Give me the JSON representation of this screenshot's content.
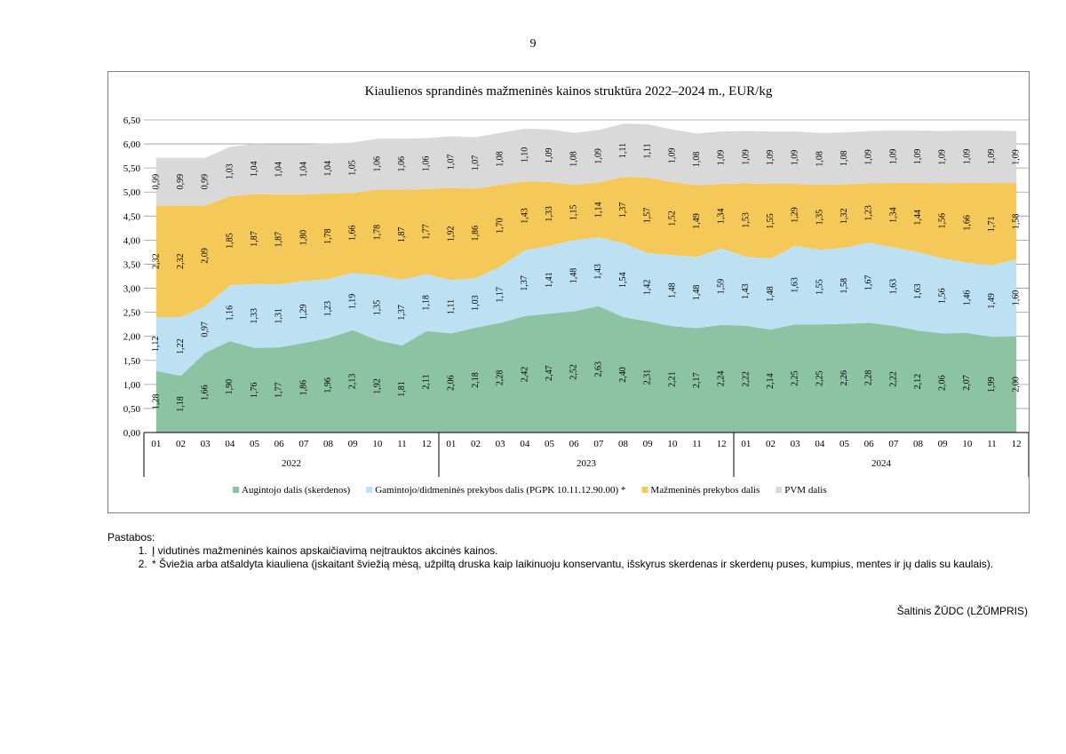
{
  "page_number": "9",
  "chart_data": {
    "type": "area",
    "stacked": true,
    "title": "Kiaulienos sprandinės mažmeninės kainos struktūra 2022–2024 m., EUR/kg",
    "xlabel": "",
    "ylabel": "",
    "ylim": [
      0,
      6.5
    ],
    "y_ticks": [
      "0,00",
      "0,50",
      "1,00",
      "1,50",
      "2,00",
      "2,50",
      "3,00",
      "3,50",
      "4,00",
      "4,50",
      "5,00",
      "5,50",
      "6,00",
      "6,50"
    ],
    "grid": true,
    "legend_position": "bottom",
    "months": [
      "01",
      "02",
      "03",
      "04",
      "05",
      "06",
      "07",
      "08",
      "09",
      "10",
      "11",
      "12",
      "01",
      "02",
      "03",
      "04",
      "05",
      "06",
      "07",
      "08",
      "09",
      "10",
      "11",
      "12",
      "01",
      "02",
      "03",
      "04",
      "05",
      "06",
      "07",
      "08",
      "09",
      "10",
      "11",
      "12"
    ],
    "years": [
      "2022",
      "2023",
      "2024"
    ],
    "series": [
      {
        "name": "Augintojo dalis (skerdenos)",
        "color": "#8cc4a3",
        "values": [
          1.28,
          1.18,
          1.66,
          1.9,
          1.76,
          1.77,
          1.86,
          1.96,
          2.13,
          1.92,
          1.81,
          2.11,
          2.06,
          2.18,
          2.28,
          2.42,
          2.47,
          2.52,
          2.63,
          2.4,
          2.31,
          2.21,
          2.17,
          2.24,
          2.22,
          2.14,
          2.25,
          2.25,
          2.26,
          2.28,
          2.22,
          2.12,
          2.06,
          2.07,
          1.99,
          2.0
        ],
        "labels": [
          "1,28",
          "1,18",
          "1,66",
          "1,90",
          "1,76",
          "1,77",
          "1,86",
          "1,96",
          "2,13",
          "1,92",
          "1,81",
          "2,11",
          "2,06",
          "2,18",
          "2,28",
          "2,42",
          "2,47",
          "2,52",
          "2,63",
          "2,40",
          "2,31",
          "2,21",
          "2,17",
          "2,24",
          "2,22",
          "2,14",
          "2,25",
          "2,25",
          "2,26",
          "2,28",
          "2,22",
          "2,12",
          "2,06",
          "2,07",
          "1,99",
          "2,00"
        ]
      },
      {
        "name": "Gamintojo/didmeninės prekybos dalis (PGPK 10.11.12.90.00) *",
        "color": "#bde0f2",
        "values": [
          1.12,
          1.22,
          0.97,
          1.16,
          1.33,
          1.31,
          1.29,
          1.23,
          1.19,
          1.35,
          1.37,
          1.18,
          1.11,
          1.03,
          1.17,
          1.37,
          1.41,
          1.48,
          1.43,
          1.54,
          1.42,
          1.48,
          1.48,
          1.59,
          1.43,
          1.48,
          1.63,
          1.55,
          1.58,
          1.67,
          1.63,
          1.63,
          1.56,
          1.46,
          1.49,
          1.6
        ],
        "labels": [
          "1,12",
          "1,22",
          "0,97",
          "1,16",
          "1,33",
          "1,31",
          "1,29",
          "1,23",
          "1,19",
          "1,35",
          "1,37",
          "1,18",
          "1,11",
          "1,03",
          "1,17",
          "1,37",
          "1,41",
          "1,48",
          "1,43",
          "1,54",
          "1,42",
          "1,48",
          "1,48",
          "1,59",
          "1,43",
          "1,48",
          "1,63",
          "1,55",
          "1,58",
          "1,67",
          "1,63",
          "1,63",
          "1,56",
          "1,46",
          "1,49",
          "1,60"
        ]
      },
      {
        "name": "Mažmeninės prekybos dalis",
        "color": "#f5c85a",
        "values": [
          2.32,
          2.32,
          2.09,
          1.85,
          1.87,
          1.87,
          1.8,
          1.78,
          1.66,
          1.78,
          1.87,
          1.77,
          1.92,
          1.86,
          1.7,
          1.43,
          1.33,
          1.15,
          1.14,
          1.37,
          1.57,
          1.52,
          1.49,
          1.34,
          1.53,
          1.55,
          1.29,
          1.35,
          1.32,
          1.23,
          1.34,
          1.44,
          1.56,
          1.66,
          1.71,
          1.58
        ],
        "labels": [
          "2,32",
          "2,32",
          "2,09",
          "1,85",
          "1,87",
          "1,87",
          "1,80",
          "1,78",
          "1,66",
          "1,78",
          "1,87",
          "1,77",
          "1,92",
          "1,86",
          "1,70",
          "1,43",
          "1,33",
          "1,15",
          "1,14",
          "1,37",
          "1,57",
          "1,52",
          "1,49",
          "1,34",
          "1,53",
          "1,55",
          "1,29",
          "1,35",
          "1,32",
          "1,23",
          "1,34",
          "1,44",
          "1,56",
          "1,66",
          "1,71",
          "1,58"
        ]
      },
      {
        "name": "PVM dalis",
        "color": "#d9d9d9",
        "values": [
          0.99,
          0.99,
          0.99,
          1.03,
          1.04,
          1.04,
          1.04,
          1.04,
          1.05,
          1.06,
          1.06,
          1.06,
          1.07,
          1.07,
          1.08,
          1.1,
          1.09,
          1.08,
          1.09,
          1.11,
          1.11,
          1.09,
          1.08,
          1.09,
          1.09,
          1.09,
          1.09,
          1.08,
          1.08,
          1.09,
          1.09,
          1.09,
          1.09,
          1.09,
          1.09,
          1.09
        ],
        "labels": [
          "0,99",
          "0,99",
          "0,99",
          "1,03",
          "1,04",
          "1,04",
          "1,04",
          "1,04",
          "1,05",
          "1,06",
          "1,06",
          "1,06",
          "1,07",
          "1,07",
          "1,08",
          "1,10",
          "1,09",
          "1,08",
          "1,09",
          "1,11",
          "1,11",
          "1,09",
          "1,08",
          "1,09",
          "1,09",
          "1,09",
          "1,09",
          "1,08",
          "1,08",
          "1,09",
          "1,09",
          "1,09",
          "1,09",
          "1,09",
          "1,09",
          "1,09"
        ]
      }
    ]
  },
  "notes": {
    "heading": "Pastabos:",
    "items": [
      "Į vidutinės mažmeninės kainos apskaičiavimą neįtrauktos akcinės kainos.",
      "* Šviežia arba atšaldyta kiauliena (įskaitant šviežią mėsą, užpiltą druska kaip laikinuoju konservantu, išskyrus skerdenas ir skerdenų puses, kumpius, mentes ir jų dalis su kaulais)."
    ]
  },
  "source": "Šaltinis ŽŪDC (LŽŪMPRIS)"
}
